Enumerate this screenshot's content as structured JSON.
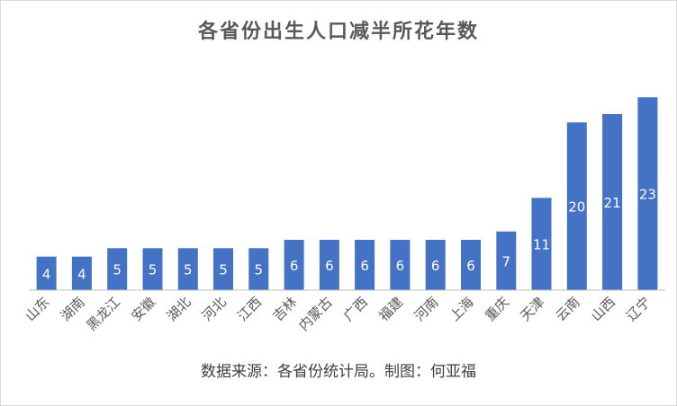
{
  "chart_data": {
    "type": "bar",
    "title": "各省份出生人口减半所花年数",
    "categories": [
      "山东",
      "湖南",
      "黑龙江",
      "安徽",
      "湖北",
      "河北",
      "江西",
      "吉林",
      "内蒙古",
      "广西",
      "福建",
      "河南",
      "上海",
      "重庆",
      "天津",
      "云南",
      "山西",
      "辽宁"
    ],
    "values": [
      4,
      4,
      5,
      5,
      5,
      5,
      5,
      6,
      6,
      6,
      6,
      6,
      6,
      7,
      11,
      20,
      21,
      23
    ],
    "data_labels": true,
    "ylim": [
      0,
      24
    ],
    "grid": false,
    "legend": false,
    "bar_color": "#4472C4",
    "label_color": "#ffffff",
    "axis_color": "#bfbfbf",
    "tick_label_color": "#595959"
  },
  "source_note": "数据来源：各省份统计局。制图：何亚福"
}
